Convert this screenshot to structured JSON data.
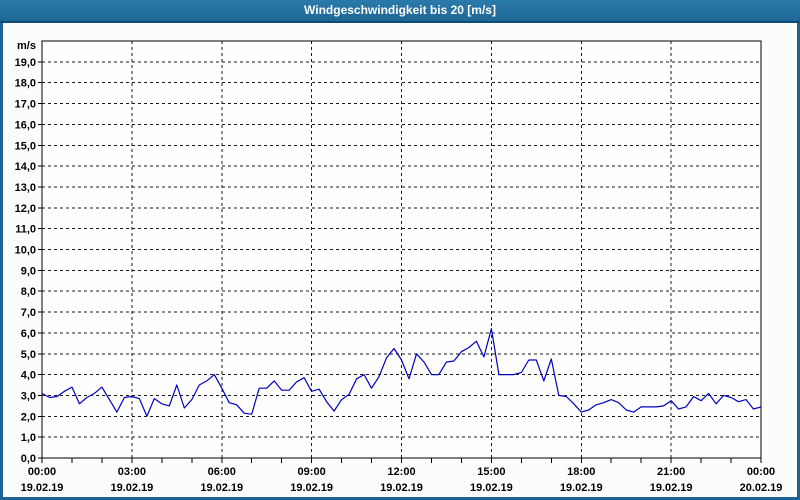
{
  "window": {
    "title": "Windgeschwindigkeit bis 20 [m/s]"
  },
  "colors": {
    "titlebar_bg": "#216fa0",
    "titlebar_text": "#ffffff",
    "frame": "#1d6294",
    "background": "#fcfdfb",
    "plot_bg": "#fefefe",
    "axis": "#000000",
    "grid": "#1a1a1a",
    "tick_text": "#000000",
    "series": "#0000bf"
  },
  "chart_data": {
    "type": "line",
    "title": "Windgeschwindigkeit bis 20 [m/s]",
    "ylabel_unit": "m/s",
    "ylim": [
      0,
      20
    ],
    "ytick_step": 1,
    "ytick_labels": [
      "0,0",
      "1,0",
      "2,0",
      "3,0",
      "4,0",
      "5,0",
      "6,0",
      "7,0",
      "8,0",
      "9,0",
      "10,0",
      "11,0",
      "12,0",
      "13,0",
      "14,0",
      "15,0",
      "16,0",
      "17,0",
      "18,0",
      "19,0"
    ],
    "xlim_hours": [
      0,
      24
    ],
    "xtick_minor_every_hours": 1,
    "xtick_major_hours": [
      0,
      3,
      6,
      9,
      12,
      15,
      18,
      21,
      24
    ],
    "xtick_major_labels": [
      "00:00",
      "03:00",
      "06:00",
      "09:00",
      "12:00",
      "15:00",
      "18:00",
      "21:00",
      "00:00"
    ],
    "xtick_dates": [
      "19.02.19",
      "19.02.19",
      "19.02.19",
      "19.02.19",
      "19.02.19",
      "19.02.19",
      "19.02.19",
      "19.02.19",
      "20.02.19"
    ],
    "grid": "dashed",
    "legend": "none",
    "series": [
      {
        "name": "Windgeschwindigkeit",
        "color": "#0000bf",
        "start_hour": 0,
        "sample_interval_minutes": 15,
        "values": [
          3.1,
          2.9,
          2.95,
          3.2,
          3.4,
          2.6,
          2.9,
          3.1,
          3.4,
          2.8,
          2.2,
          2.9,
          2.95,
          2.85,
          2.0,
          2.85,
          2.6,
          2.5,
          3.5,
          2.4,
          2.8,
          3.5,
          3.7,
          4.0,
          3.35,
          2.65,
          2.55,
          2.15,
          2.1,
          3.35,
          3.35,
          3.7,
          3.25,
          3.25,
          3.65,
          3.85,
          3.2,
          3.3,
          2.7,
          2.25,
          2.8,
          3.05,
          3.8,
          4.0,
          3.35,
          3.9,
          4.8,
          5.25,
          4.7,
          3.8,
          5.0,
          4.6,
          4.0,
          4.0,
          4.6,
          4.65,
          5.1,
          5.3,
          5.6,
          4.85,
          6.2,
          4.0,
          4.0,
          4.0,
          4.1,
          4.7,
          4.7,
          3.7,
          4.75,
          3.0,
          2.95,
          2.6,
          2.2,
          2.3,
          2.55,
          2.65,
          2.8,
          2.65,
          2.3,
          2.2,
          2.45,
          2.45,
          2.45,
          2.5,
          2.75,
          2.35,
          2.45,
          2.95,
          2.75,
          3.1,
          2.6,
          3.0,
          2.9,
          2.7,
          2.8,
          2.35,
          2.45
        ]
      }
    ]
  }
}
